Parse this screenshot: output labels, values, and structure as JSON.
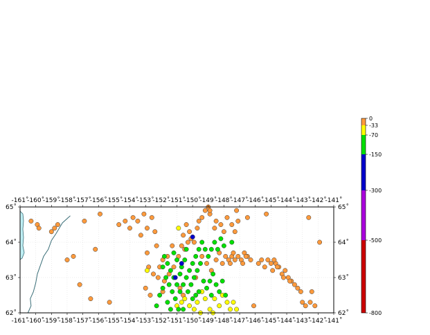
{
  "map": {
    "lon_ticks": [
      -161,
      -160,
      -159,
      -158,
      -157,
      -156,
      -155,
      -154,
      -153,
      -152,
      -151,
      -150,
      -149,
      -148,
      -147,
      -146,
      -145,
      -144,
      -143,
      -142,
      -141
    ],
    "lat_ticks": [
      62,
      63,
      64,
      65
    ],
    "lon_range": [
      -161,
      -141
    ],
    "lat_range": [
      62,
      65
    ],
    "degree_symbol": "˚",
    "colors": {
      "frame": "#000000",
      "grid": "#d8d8d8",
      "water": "#bfeff4",
      "coast": "#3a6e78",
      "shallow": "#ff9a3c",
      "mid": "#ffff00",
      "intermediate": "#00e000",
      "deep": "#0000cc"
    }
  },
  "legend": {
    "tick_labels": [
      "0",
      "-33",
      "-70",
      "-150",
      "-300",
      "-500",
      "-800"
    ],
    "segments": [
      {
        "from": 0,
        "to": -33,
        "color": "#ff9a3c"
      },
      {
        "from": -33,
        "to": -70,
        "color": "#ffff00"
      },
      {
        "from": -70,
        "to": -150,
        "color": "#00e000"
      },
      {
        "from": -150,
        "to": -300,
        "color": "#0000cc"
      },
      {
        "from": -300,
        "to": -500,
        "color": "#aa00dd"
      },
      {
        "from": -500,
        "to": -800,
        "color": "#cc0000"
      }
    ]
  },
  "events": {
    "shallow": [
      [
        -160.3,
        64.6
      ],
      [
        -159.9,
        64.5
      ],
      [
        -159.8,
        64.4
      ],
      [
        -159.0,
        64.3
      ],
      [
        -158.8,
        64.4
      ],
      [
        -158.6,
        64.5
      ],
      [
        -158.0,
        63.5
      ],
      [
        -157.6,
        63.6
      ],
      [
        -157.2,
        62.8
      ],
      [
        -156.9,
        64.6
      ],
      [
        -156.5,
        62.4
      ],
      [
        -156.2,
        63.8
      ],
      [
        -155.9,
        64.8
      ],
      [
        -155.3,
        62.3
      ],
      [
        -154.7,
        64.5
      ],
      [
        -154.3,
        64.6
      ],
      [
        -154.0,
        64.4
      ],
      [
        -153.8,
        64.7
      ],
      [
        -153.5,
        64.6
      ],
      [
        -153.3,
        64.2
      ],
      [
        -153.1,
        64.8
      ],
      [
        -152.9,
        64.4
      ],
      [
        -152.6,
        64.7
      ],
      [
        -152.4,
        64.3
      ],
      [
        -152.8,
        63.3
      ],
      [
        -152.9,
        63.7
      ],
      [
        -152.5,
        63.1
      ],
      [
        -152.1,
        63.3
      ],
      [
        -151.9,
        63.5
      ],
      [
        -151.6,
        63.6
      ],
      [
        -151.2,
        63.3
      ],
      [
        -150.9,
        63.6
      ],
      [
        -150.7,
        63.9
      ],
      [
        -150.5,
        63.8
      ],
      [
        -150.3,
        64.0
      ],
      [
        -150.1,
        64.1
      ],
      [
        -149.9,
        64.0
      ],
      [
        -150.6,
        64.2
      ],
      [
        -150.2,
        64.3
      ],
      [
        -149.6,
        64.6
      ],
      [
        -149.4,
        64.7
      ],
      [
        -149.2,
        64.9
      ],
      [
        -149.0,
        65.0
      ],
      [
        -148.9,
        64.8
      ],
      [
        -148.6,
        64.4
      ],
      [
        -148.5,
        64.6
      ],
      [
        -148.2,
        64.5
      ],
      [
        -148.0,
        64.3
      ],
      [
        -147.8,
        64.7
      ],
      [
        -147.5,
        64.5
      ],
      [
        -147.3,
        64.3
      ],
      [
        -147.1,
        64.6
      ],
      [
        -149.7,
        64.4
      ],
      [
        -149.4,
        63.6
      ],
      [
        -149.1,
        63.4
      ],
      [
        -148.8,
        63.2
      ],
      [
        -148.5,
        63.5
      ],
      [
        -148.3,
        63.7
      ],
      [
        -148.1,
        63.4
      ],
      [
        -147.9,
        63.6
      ],
      [
        -147.7,
        63.5
      ],
      [
        -147.5,
        63.6
      ],
      [
        -147.3,
        63.5
      ],
      [
        -147.1,
        63.6
      ],
      [
        -146.9,
        63.5
      ],
      [
        -146.7,
        63.7
      ],
      [
        -146.5,
        63.6
      ],
      [
        -146.3,
        63.5
      ],
      [
        -147.6,
        63.4
      ],
      [
        -147.4,
        63.7
      ],
      [
        -146.8,
        63.4
      ],
      [
        -146.6,
        63.6
      ],
      [
        -145.8,
        63.4
      ],
      [
        -145.6,
        63.5
      ],
      [
        -145.4,
        63.3
      ],
      [
        -145.2,
        63.5
      ],
      [
        -145.0,
        63.4
      ],
      [
        -144.9,
        63.2
      ],
      [
        -144.7,
        63.4
      ],
      [
        -144.5,
        63.3
      ],
      [
        -144.3,
        63.1
      ],
      [
        -144.1,
        63.2
      ],
      [
        -143.9,
        63.0
      ],
      [
        -143.7,
        62.9
      ],
      [
        -143.5,
        62.8
      ],
      [
        -143.3,
        62.7
      ],
      [
        -143.1,
        62.6
      ],
      [
        -144.8,
        63.5
      ],
      [
        -144.6,
        63.3
      ],
      [
        -144.2,
        63.0
      ],
      [
        -143.8,
        62.9
      ],
      [
        -143.0,
        62.3
      ],
      [
        -142.8,
        62.2
      ],
      [
        -142.5,
        62.3
      ],
      [
        -142.2,
        62.2
      ],
      [
        -142.4,
        62.6
      ],
      [
        -141.9,
        64.0
      ],
      [
        -142.6,
        64.7
      ],
      [
        -151.3,
        63.9
      ],
      [
        -151.5,
        63.1
      ],
      [
        -151.8,
        62.9
      ],
      [
        -150.8,
        62.7
      ],
      [
        -150.6,
        62.5
      ],
      [
        -152.2,
        63.0
      ],
      [
        -146.1,
        62.2
      ],
      [
        -148.9,
        64.9
      ],
      [
        -150.4,
        64.5
      ],
      [
        -152.3,
        63.9
      ],
      [
        -153.0,
        62.7
      ],
      [
        -152.7,
        62.5
      ],
      [
        -151.9,
        62.6
      ],
      [
        -149.8,
        63.0
      ],
      [
        -147.2,
        64.9
      ],
      [
        -146.5,
        64.7
      ],
      [
        -145.3,
        64.8
      ]
    ],
    "mid": [
      [
        -150.9,
        64.4
      ],
      [
        -152.9,
        63.2
      ],
      [
        -149.4,
        62.6
      ],
      [
        -149.7,
        62.3
      ],
      [
        -149.9,
        62.1
      ],
      [
        -149.2,
        62.4
      ],
      [
        -148.9,
        62.1
      ],
      [
        -148.6,
        62.4
      ],
      [
        -148.3,
        62.2
      ],
      [
        -148.1,
        62.5
      ],
      [
        -147.8,
        62.3
      ],
      [
        -147.6,
        62.1
      ],
      [
        -147.4,
        62.3
      ],
      [
        -150.2,
        62.2
      ],
      [
        -150.5,
        62.4
      ],
      [
        -149.5,
        62.0
      ],
      [
        -148.7,
        62.0
      ],
      [
        -150.7,
        62.3
      ],
      [
        -147.2,
        62.1
      ],
      [
        -151.0,
        62.2
      ]
    ],
    "intermediate": [
      [
        -151.8,
        63.6
      ],
      [
        -151.6,
        63.4
      ],
      [
        -151.4,
        63.2
      ],
      [
        -151.2,
        63.0
      ],
      [
        -151.0,
        62.8
      ],
      [
        -150.8,
        62.6
      ],
      [
        -150.6,
        62.8
      ],
      [
        -150.4,
        63.0
      ],
      [
        -150.2,
        63.2
      ],
      [
        -150.0,
        63.4
      ],
      [
        -149.8,
        63.6
      ],
      [
        -149.6,
        63.8
      ],
      [
        -149.4,
        64.0
      ],
      [
        -149.2,
        63.8
      ],
      [
        -149.0,
        63.6
      ],
      [
        -148.8,
        63.8
      ],
      [
        -148.6,
        64.0
      ],
      [
        -148.4,
        63.8
      ],
      [
        -148.2,
        64.1
      ],
      [
        -148.0,
        63.9
      ],
      [
        -151.7,
        63.0
      ],
      [
        -151.5,
        62.8
      ],
      [
        -151.3,
        62.6
      ],
      [
        -151.1,
        62.4
      ],
      [
        -151.9,
        62.7
      ],
      [
        -152.1,
        62.5
      ],
      [
        -151.6,
        62.3
      ],
      [
        -151.4,
        62.1
      ],
      [
        -150.9,
        62.1
      ],
      [
        -150.3,
        62.6
      ],
      [
        -150.1,
        62.8
      ],
      [
        -149.9,
        63.0
      ],
      [
        -149.7,
        63.2
      ],
      [
        -149.5,
        63.4
      ],
      [
        -149.3,
        62.9
      ],
      [
        -149.1,
        62.7
      ],
      [
        -148.9,
        62.9
      ],
      [
        -148.7,
        63.1
      ],
      [
        -148.5,
        62.8
      ],
      [
        -148.3,
        62.6
      ],
      [
        -148.1,
        62.9
      ],
      [
        -150.7,
        63.3
      ],
      [
        -150.5,
        63.5
      ],
      [
        -151.0,
        63.5
      ],
      [
        -151.2,
        63.7
      ],
      [
        -150.4,
        63.8
      ],
      [
        -149.6,
        62.6
      ],
      [
        -152.3,
        62.2
      ],
      [
        -150.0,
        62.4
      ],
      [
        -149.8,
        62.5
      ],
      [
        -147.5,
        64.0
      ],
      [
        -147.9,
        62.5
      ],
      [
        -151.9,
        63.3
      ],
      [
        -150.8,
        63.1
      ],
      [
        -148.8,
        62.5
      ],
      [
        -150.6,
        62.1
      ]
    ],
    "deep": [
      [
        -150.0,
        64.15
      ],
      [
        -151.1,
        63.0
      ],
      [
        -150.7,
        63.4
      ]
    ]
  }
}
